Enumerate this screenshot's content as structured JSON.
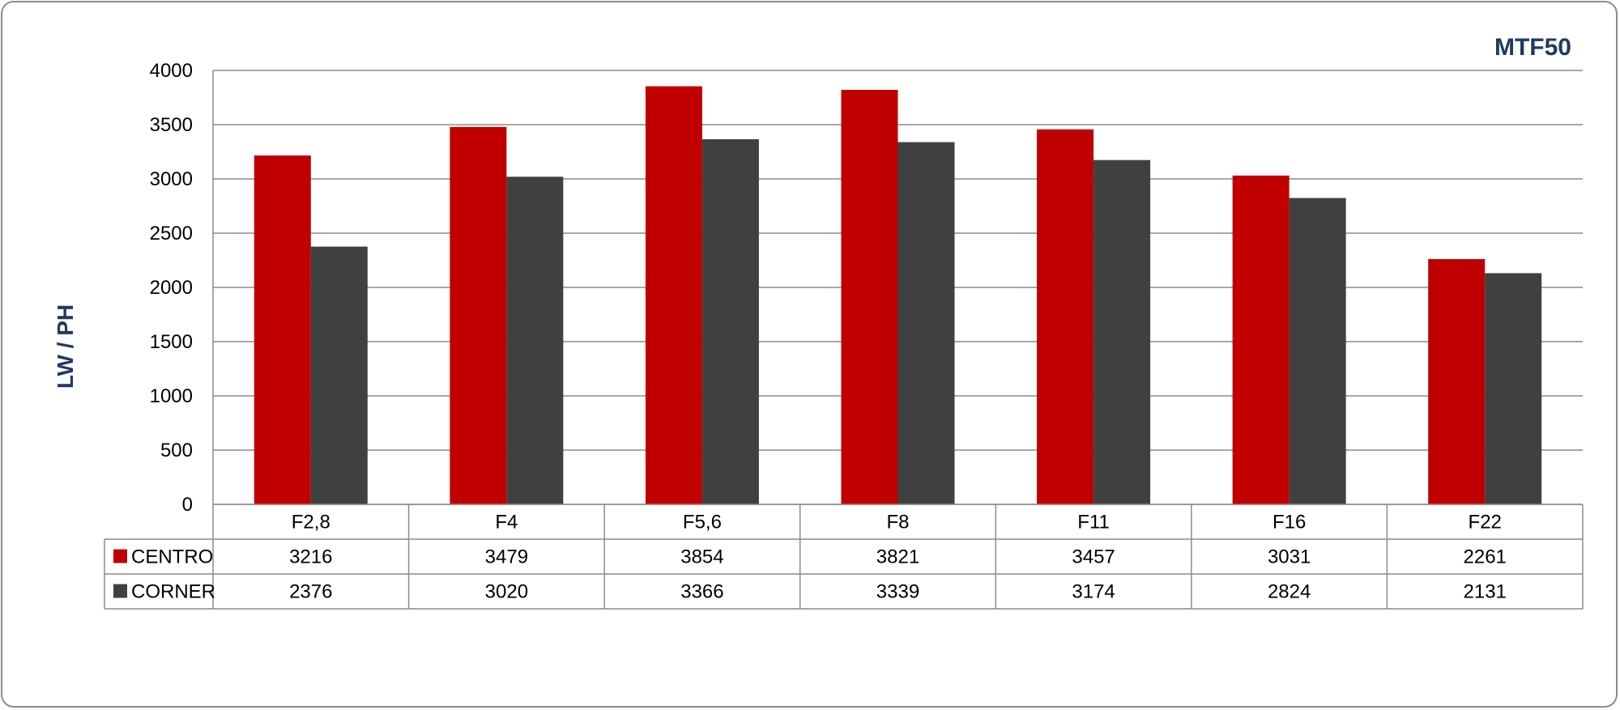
{
  "chart_data": {
    "type": "bar",
    "title": "MTF50",
    "xlabel": "",
    "ylabel": "LW / PH",
    "ylim": [
      0,
      4000
    ],
    "yticks": [
      0,
      500,
      1000,
      1500,
      2000,
      2500,
      3000,
      3500,
      4000
    ],
    "grid": true,
    "legend": "data-table",
    "categories": [
      "F2,8",
      "F4",
      "F5,6",
      "F8",
      "F11",
      "F16",
      "F22"
    ],
    "series": [
      {
        "name": "CENTRO",
        "color": "#c00000",
        "values": [
          3216,
          3479,
          3854,
          3821,
          3457,
          3031,
          2261
        ]
      },
      {
        "name": "CORNER",
        "color": "#404040",
        "values": [
          2376,
          3020,
          3366,
          3339,
          3174,
          2824,
          2131
        ]
      }
    ]
  }
}
